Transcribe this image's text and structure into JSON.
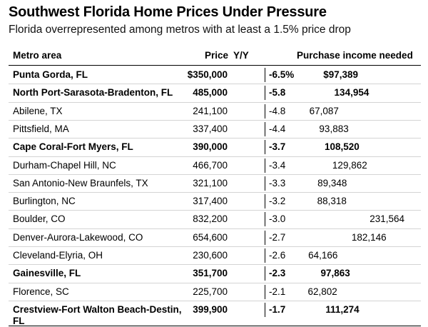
{
  "title": "Southwest Florida Home Prices Under Pressure",
  "subtitle": "Florida overrepresented among metros with at least a 1.5% price drop",
  "headers": {
    "metro": "Metro area",
    "price": "Price",
    "yy": "Y/Y",
    "income": "Purchase income needed"
  },
  "chart_data": {
    "type": "table",
    "columns": [
      "Metro area",
      "Price",
      "Y/Y",
      "Purchase income needed"
    ],
    "rows": [
      {
        "metro": "Punta Gorda, FL",
        "price": "$350,000",
        "yy": "-6.5%",
        "income": "$97,389",
        "yy_value": -6.5,
        "income_value": 97389,
        "bold": true
      },
      {
        "metro": "North Port-Sarasota-Bradenton, FL",
        "price": "485,000",
        "yy": "-5.8",
        "income": "134,954",
        "yy_value": -5.8,
        "income_value": 134954,
        "bold": true
      },
      {
        "metro": "Abilene, TX",
        "price": "241,100",
        "yy": "-4.8",
        "income": "67,087",
        "yy_value": -4.8,
        "income_value": 67087,
        "bold": false
      },
      {
        "metro": "Pittsfield, MA",
        "price": "337,400",
        "yy": "-4.4",
        "income": "93,883",
        "yy_value": -4.4,
        "income_value": 93883,
        "bold": false
      },
      {
        "metro": "Cape Coral-Fort Myers, FL",
        "price": "390,000",
        "yy": "-3.7",
        "income": "108,520",
        "yy_value": -3.7,
        "income_value": 108520,
        "bold": true
      },
      {
        "metro": "Durham-Chapel Hill, NC",
        "price": "466,700",
        "yy": "-3.4",
        "income": "129,862",
        "yy_value": -3.4,
        "income_value": 129862,
        "bold": false
      },
      {
        "metro": "San Antonio-New Braunfels, TX",
        "price": "321,100",
        "yy": "-3.3",
        "income": "89,348",
        "yy_value": -3.3,
        "income_value": 89348,
        "bold": false
      },
      {
        "metro": "Burlington, NC",
        "price": "317,400",
        "yy": "-3.2",
        "income": "88,318",
        "yy_value": -3.2,
        "income_value": 88318,
        "bold": false
      },
      {
        "metro": "Boulder, CO",
        "price": "832,200",
        "yy": "-3.0",
        "income": "231,564",
        "yy_value": -3.0,
        "income_value": 231564,
        "bold": false
      },
      {
        "metro": "Denver-Aurora-Lakewood, CO",
        "price": "654,600",
        "yy": "-2.7",
        "income": "182,146",
        "yy_value": -2.7,
        "income_value": 182146,
        "bold": false
      },
      {
        "metro": "Cleveland-Elyria, OH",
        "price": "230,600",
        "yy": "-2.6",
        "income": "64,166",
        "yy_value": -2.6,
        "income_value": 64166,
        "bold": false
      },
      {
        "metro": "Gainesville, FL",
        "price": "351,700",
        "yy": "-2.3",
        "income": "97,863",
        "yy_value": -2.3,
        "income_value": 97863,
        "bold": true
      },
      {
        "metro": "Florence, SC",
        "price": "225,700",
        "yy": "-2.1",
        "income": "62,802",
        "yy_value": -2.1,
        "income_value": 62802,
        "bold": false
      },
      {
        "metro": "Crestview-Fort Walton Beach-Destin, FL",
        "price": "399,900",
        "yy": "-1.7",
        "income": "111,274",
        "yy_value": -1.7,
        "income_value": 111274,
        "bold": true
      }
    ]
  }
}
